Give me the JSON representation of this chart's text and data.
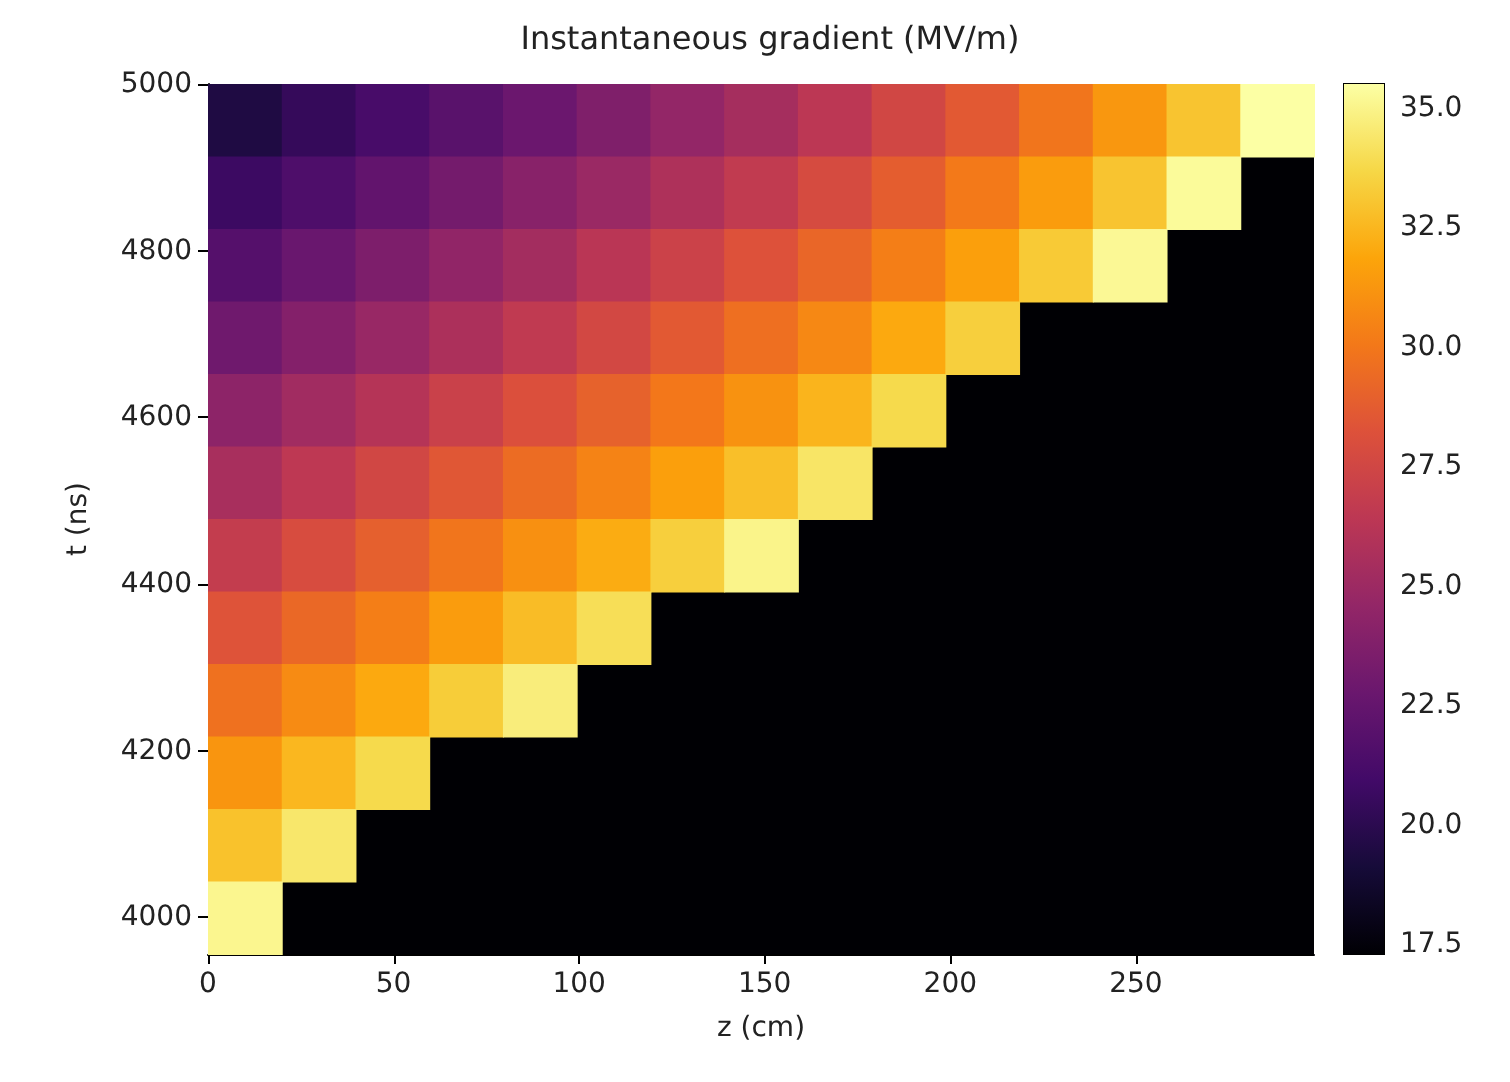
{
  "chart_data": {
    "type": "heatmap",
    "title": "Instantaneous gradient (MV/m)",
    "xlabel": "z (cm)",
    "ylabel": "t (ns)",
    "xlim": [
      0,
      298
    ],
    "xticks": [
      0,
      50,
      100,
      150,
      200,
      250
    ],
    "ylim": [
      3956,
      5000
    ],
    "yticks": [
      4000,
      4200,
      4400,
      4600,
      4800,
      5000
    ],
    "clim": [
      17.3,
      35.5
    ],
    "cticks": [
      {
        "value": 17.5,
        "label": "17.5"
      },
      {
        "value": 20,
        "label": "20.0"
      },
      {
        "value": 22.5,
        "label": "22.5"
      },
      {
        "value": 25,
        "label": "25.0"
      },
      {
        "value": 27.5,
        "label": "27.5"
      },
      {
        "value": 30,
        "label": "30.0"
      },
      {
        "value": 32.5,
        "label": "32.5"
      },
      {
        "value": 35,
        "label": "35.0"
      }
    ],
    "grid": false,
    "cells": [
      [
        19.5,
        20.4,
        21.2,
        22.0,
        22.8,
        23.7,
        24.6,
        25.4,
        26.4,
        27.5,
        28.6,
        29.9,
        31.3,
        33.0,
        35.5
      ],
      [
        20.7,
        21.5,
        22.4,
        23.2,
        24.1,
        24.9,
        25.8,
        26.7,
        27.8,
        28.8,
        30.1,
        31.5,
        33.0,
        35.3,
        null
      ],
      [
        21.8,
        22.7,
        23.6,
        24.5,
        25.3,
        26.3,
        27.2,
        28.2,
        29.2,
        30.3,
        31.6,
        33.2,
        35.2,
        null,
        null
      ],
      [
        23.0,
        23.9,
        24.8,
        25.7,
        26.6,
        27.6,
        28.6,
        29.6,
        30.7,
        32.0,
        33.4,
        null,
        null,
        null,
        null
      ],
      [
        24.3,
        25.2,
        26.1,
        27.1,
        28.1,
        29.0,
        30.0,
        31.1,
        32.4,
        33.8,
        null,
        null,
        null,
        null,
        null
      ],
      [
        25.5,
        26.5,
        27.5,
        28.5,
        29.5,
        30.5,
        31.6,
        32.8,
        34.3,
        null,
        null,
        null,
        null,
        null,
        null
      ],
      [
        26.8,
        27.9,
        28.9,
        29.9,
        31.0,
        32.1,
        33.4,
        35.0,
        null,
        null,
        null,
        null,
        null,
        null,
        null
      ],
      [
        28.3,
        29.3,
        30.3,
        31.5,
        32.7,
        34.0,
        null,
        null,
        null,
        null,
        null,
        null,
        null,
        null,
        null
      ],
      [
        29.7,
        30.8,
        32.0,
        33.3,
        34.7,
        null,
        null,
        null,
        null,
        null,
        null,
        null,
        null,
        null,
        null
      ],
      [
        31.2,
        32.5,
        33.8,
        null,
        null,
        null,
        null,
        null,
        null,
        null,
        null,
        null,
        null,
        null,
        null
      ],
      [
        32.9,
        34.4,
        null,
        null,
        null,
        null,
        null,
        null,
        null,
        null,
        null,
        null,
        null,
        null,
        null
      ],
      [
        35.1,
        null,
        null,
        null,
        null,
        null,
        null,
        null,
        null,
        null,
        null,
        null,
        null,
        null,
        null
      ]
    ]
  }
}
